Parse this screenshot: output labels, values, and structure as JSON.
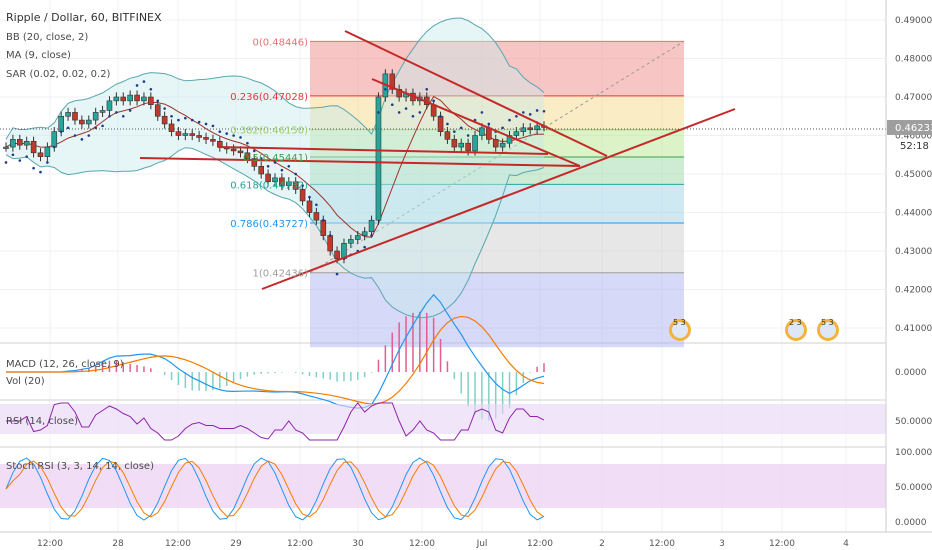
{
  "chart_data": {
    "type": "candlestick",
    "title": "Ripple / Dollar, 60, BITFINEX",
    "indicators": [
      "BB (20, close, 2)",
      "MA (9, close)",
      "SAR (0.02, 0.02, 0.2)"
    ],
    "price_axis": {
      "ticks": [
        "0.49000",
        "0.48000",
        "0.47000",
        "0.46000",
        "0.45000",
        "0.44000",
        "0.43000",
        "0.42000",
        "0.41000"
      ],
      "ylim": [
        0.405,
        0.494
      ]
    },
    "current_price": "0.46233",
    "countdown": "52:18",
    "time_axis": [
      "12:00",
      "28",
      "12:00",
      "29",
      "12:00",
      "30",
      "12:00",
      "Jul",
      "12:00",
      "2",
      "12:00",
      "3",
      "12:00",
      "4"
    ],
    "fib_levels": [
      {
        "label": "0(0.48446)",
        "value": 0.48446,
        "color": "#e57373"
      },
      {
        "label": "0.236(0.47028)",
        "value": 0.47028,
        "color": "#e53935"
      },
      {
        "label": "0.382(0.46150)",
        "value": 0.4615,
        "color": "#9ccc65"
      },
      {
        "label": "0.5(0.45441)",
        "value": 0.45441,
        "color": "#43a047"
      },
      {
        "label": "0.618(0.44732)",
        "value": 0.44732,
        "color": "#26a69a"
      },
      {
        "label": "0.786(0.43727)",
        "value": 0.43727,
        "color": "#2196f3"
      },
      {
        "label": "1(0.42436)",
        "value": 0.42436,
        "color": "#9e9e9e"
      }
    ],
    "fib_zones": [
      {
        "from": 0.48446,
        "to": 0.47028,
        "color": "#f28b8b"
      },
      {
        "from": 0.47028,
        "to": 0.4615,
        "color": "#f5d98a"
      },
      {
        "from": 0.4615,
        "to": 0.45441,
        "color": "#b9e58f"
      },
      {
        "from": 0.45441,
        "to": 0.44732,
        "color": "#9ed8a8"
      },
      {
        "from": 0.44732,
        "to": 0.43727,
        "color": "#9fd3e8"
      },
      {
        "from": 0.43727,
        "to": 0.42436,
        "color": "#cfcfcf"
      },
      {
        "from": 0.42436,
        "to": 0.405,
        "color": "#aeb3f0"
      }
    ],
    "close_path": [
      0.457,
      0.459,
      0.4575,
      0.4585,
      0.4555,
      0.4545,
      0.457,
      0.461,
      0.465,
      0.466,
      0.464,
      0.463,
      0.464,
      0.466,
      0.4665,
      0.469,
      0.47,
      0.469,
      0.4705,
      0.469,
      0.47,
      0.468,
      0.465,
      0.463,
      0.461,
      0.46,
      0.4605,
      0.46,
      0.4595,
      0.459,
      0.4585,
      0.457,
      0.4565,
      0.456,
      0.4555,
      0.454,
      0.452,
      0.45,
      0.448,
      0.449,
      0.447,
      0.448,
      0.446,
      0.443,
      0.44,
      0.438,
      0.434,
      0.43,
      0.428,
      0.432,
      0.433,
      0.434,
      0.435,
      0.438,
      0.47,
      0.476,
      0.472,
      0.47,
      0.471,
      0.469,
      0.47,
      0.468,
      0.465,
      0.461,
      0.459,
      0.457,
      0.458,
      0.456,
      0.46,
      0.462,
      0.459,
      0.457,
      0.458,
      0.46,
      0.461,
      0.462,
      0.4615,
      0.4625,
      0.4623
    ],
    "macd_label": "MACD (12, 26, close, 9)",
    "macd_tick": "0.0000",
    "vol_label": "Vol (20)",
    "rsi_label": "RSI (14, close)",
    "rsi_tick": "50.0000",
    "stoch_label": "Stoch RSI (3, 3, 14, 14, close)",
    "stoch_ticks": [
      "100.0000",
      "50.0000",
      "0.0000"
    ],
    "event_badges": [
      "5 3",
      "2 3",
      "5 3"
    ]
  }
}
